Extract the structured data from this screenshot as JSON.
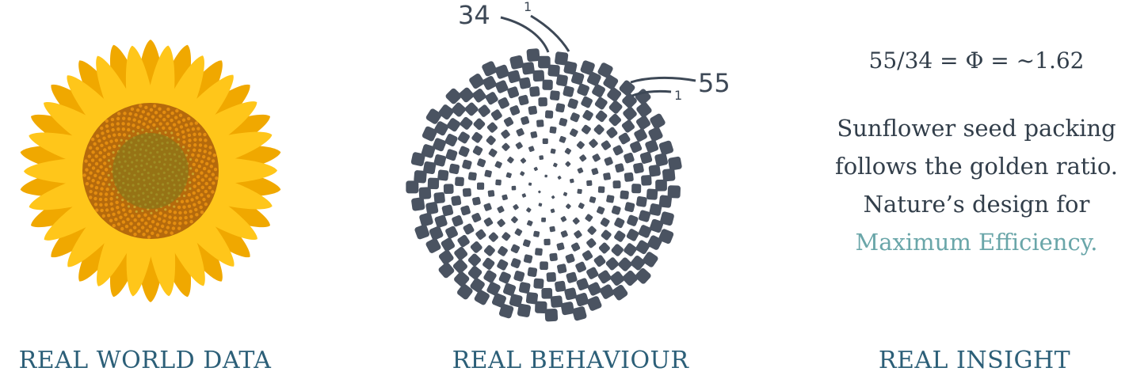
{
  "panels": {
    "data": {
      "caption": "REAL WORLD DATA",
      "image": "sunflower-photo"
    },
    "behaviour": {
      "caption": "REAL BEHAVIOUR",
      "spiral_labels": {
        "count_a": "34",
        "count_b": "55",
        "start_a": "1",
        "start_b": "1"
      }
    },
    "insight": {
      "caption": "REAL INSIGHT",
      "formula": "55/34 = Φ = ~1.62",
      "text_before": "Sunflower seed packing follows the golden ratio. Nature’s design for ",
      "text_accent": "Maximum Efficiency."
    }
  },
  "colors": {
    "caption": "#2c5f78",
    "body_text": "#323e4a",
    "accent": "#6aa6a9",
    "seed": "#4a5361",
    "petal": "#ffc20e",
    "center": "#8a5a10"
  }
}
